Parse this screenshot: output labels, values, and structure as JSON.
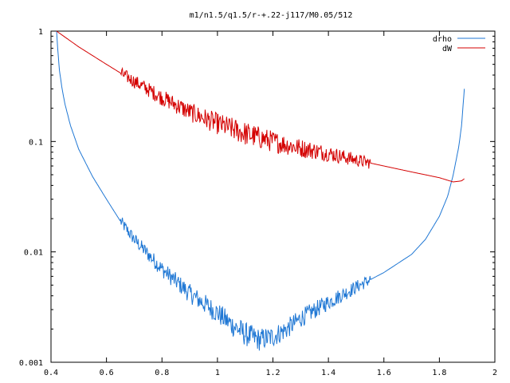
{
  "chart_data": {
    "type": "line",
    "title": "m1/n1.5/q1.5/r-+.22-j117/M0.05/512",
    "xlabel": "",
    "ylabel": "",
    "xlim": [
      0.4,
      2
    ],
    "ylim": [
      0.001,
      1
    ],
    "yscale": "log",
    "grid": false,
    "legend_position": "top-right",
    "x_ticks": [
      {
        "value": 0.4,
        "label": "0.4"
      },
      {
        "value": 0.6,
        "label": "0.6"
      },
      {
        "value": 0.8,
        "label": "0.8"
      },
      {
        "value": 1.0,
        "label": "1"
      },
      {
        "value": 1.2,
        "label": "1.2"
      },
      {
        "value": 1.4,
        "label": "1.4"
      },
      {
        "value": 1.6,
        "label": "1.6"
      },
      {
        "value": 1.8,
        "label": "1.8"
      },
      {
        "value": 2.0,
        "label": "2"
      }
    ],
    "y_ticks": [
      {
        "value": 1,
        "label": "1"
      },
      {
        "value": 0.1,
        "label": "0.1"
      },
      {
        "value": 0.01,
        "label": "0.01"
      },
      {
        "value": 0.001,
        "label": "0.001"
      }
    ],
    "series": [
      {
        "name": "drho",
        "color": "#1f77d4",
        "x": [
          0.42,
          0.425,
          0.43,
          0.44,
          0.45,
          0.47,
          0.5,
          0.55,
          0.6,
          0.65,
          0.7,
          0.8,
          0.9,
          1.0,
          1.05,
          1.1,
          1.15,
          1.2,
          1.25,
          1.3,
          1.4,
          1.5,
          1.6,
          1.7,
          1.75,
          1.8,
          1.83,
          1.85,
          1.87,
          1.88,
          1.89
        ],
        "y": [
          1.0,
          0.65,
          0.45,
          0.3,
          0.22,
          0.14,
          0.085,
          0.048,
          0.03,
          0.019,
          0.013,
          0.007,
          0.0042,
          0.0028,
          0.0022,
          0.0018,
          0.0016,
          0.0017,
          0.002,
          0.0025,
          0.0035,
          0.0048,
          0.0065,
          0.0095,
          0.013,
          0.021,
          0.032,
          0.05,
          0.09,
          0.14,
          0.3
        ],
        "noise_ranges": [
          [
            0.65,
            1.55
          ]
        ]
      },
      {
        "name": "dW",
        "color": "#d40000",
        "x": [
          0.42,
          0.5,
          0.6,
          0.7,
          0.8,
          0.9,
          1.0,
          1.1,
          1.2,
          1.3,
          1.4,
          1.5,
          1.6,
          1.7,
          1.8,
          1.85,
          1.88,
          1.89
        ],
        "y": [
          1.0,
          0.72,
          0.5,
          0.35,
          0.25,
          0.185,
          0.145,
          0.118,
          0.1,
          0.087,
          0.078,
          0.068,
          0.06,
          0.053,
          0.047,
          0.043,
          0.044,
          0.046
        ],
        "noise_ranges": [
          [
            0.65,
            1.55
          ]
        ]
      }
    ]
  }
}
